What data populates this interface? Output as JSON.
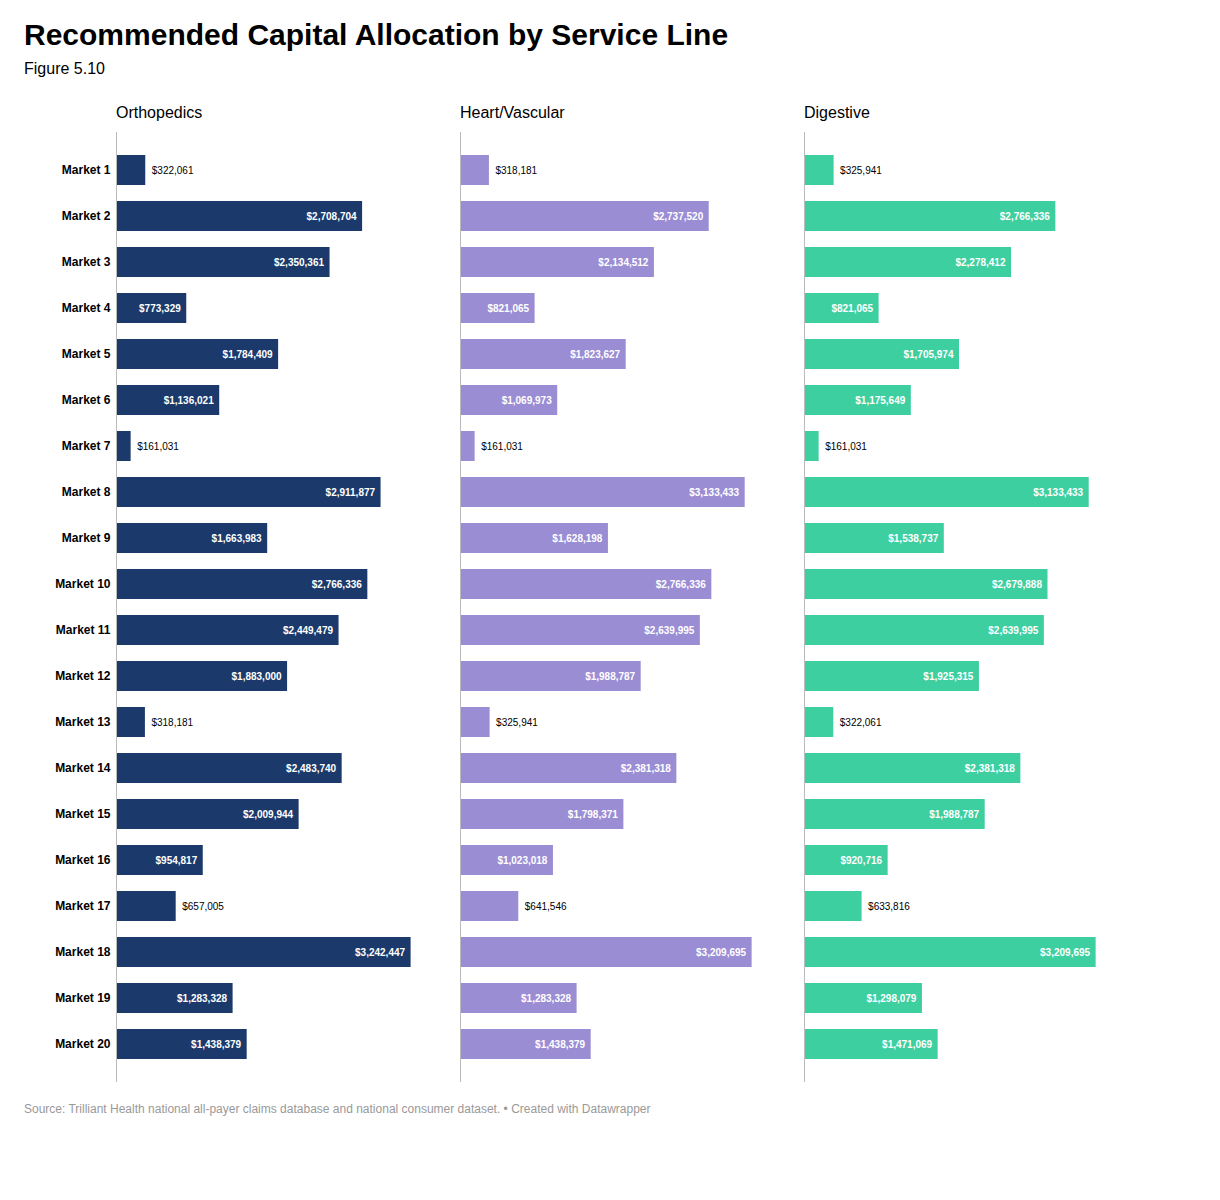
{
  "chart_data": {
    "type": "bar",
    "orientation": "horizontal",
    "title": "Recommended Capital Allocation by Service Line",
    "subtitle": "Figure 5.10",
    "caption": "Source: Trilliant Health national all-payer claims database and national consumer dataset. • Created with Datawrapper",
    "categories": [
      "Market 1",
      "Market 2",
      "Market 3",
      "Market 4",
      "Market 5",
      "Market 6",
      "Market 7",
      "Market 8",
      "Market 9",
      "Market 10",
      "Market 11",
      "Market 12",
      "Market 13",
      "Market 14",
      "Market 15",
      "Market 16",
      "Market 17",
      "Market 18",
      "Market 19",
      "Market 20"
    ],
    "series": [
      {
        "name": "Orthopedics",
        "color": "#1b3a6b",
        "values": [
          322061,
          2708704,
          2350361,
          773329,
          1784409,
          1136021,
          161031,
          2911877,
          1663983,
          2766336,
          2449479,
          1883000,
          318181,
          2483740,
          2009944,
          954817,
          657005,
          3242447,
          1283328,
          1438379
        ],
        "value_labels": [
          "$322,061",
          "$2,708,704",
          "$2,350,361",
          "$773,329",
          "$1,784,409",
          "$1,136,021",
          "$161,031",
          "$2,911,877",
          "$1,663,983",
          "$2,766,336",
          "$2,449,479",
          "$1,883,000",
          "$318,181",
          "$2,483,740",
          "$2,009,944",
          "$954,817",
          "$657,005",
          "$3,242,447",
          "$1,283,328",
          "$1,438,379"
        ]
      },
      {
        "name": "Heart/Vascular",
        "color": "#9b8dd4",
        "values": [
          318181,
          2737520,
          2134512,
          821065,
          1823627,
          1069973,
          161031,
          3133433,
          1628198,
          2766336,
          2639995,
          1988787,
          325941,
          2381318,
          1798371,
          1023018,
          641546,
          3209695,
          1283328,
          1438379
        ],
        "value_labels": [
          "$318,181",
          "$2,737,520",
          "$2,134,512",
          "$821,065",
          "$1,823,627",
          "$1,069,973",
          "$161,031",
          "$3,133,433",
          "$1,628,198",
          "$2,766,336",
          "$2,639,995",
          "$1,988,787",
          "$325,941",
          "$2,381,318",
          "$1,798,371",
          "$1,023,018",
          "$641,546",
          "$3,209,695",
          "$1,283,328",
          "$1,438,379"
        ]
      },
      {
        "name": "Digestive",
        "color": "#3ecfa0",
        "values": [
          325941,
          2766336,
          2278412,
          821065,
          1705974,
          1175649,
          161031,
          3133433,
          1538737,
          2679888,
          2639995,
          1925315,
          322061,
          2381318,
          1988787,
          920716,
          633816,
          3209695,
          1298079,
          1471069
        ],
        "value_labels": [
          "$325,941",
          "$2,766,336",
          "$2,278,412",
          "$821,065",
          "$1,705,974",
          "$1,175,649",
          "$161,031",
          "$3,133,433",
          "$1,538,737",
          "$2,679,888",
          "$2,639,995",
          "$1,925,315",
          "$322,061",
          "$2,381,318",
          "$1,988,787",
          "$920,716",
          "$633,816",
          "$3,209,695",
          "$1,298,079",
          "$1,471,069"
        ]
      }
    ],
    "xlim": [
      0,
      3500000
    ],
    "tick_labels": "y",
    "data_labels": true,
    "grid": false
  }
}
